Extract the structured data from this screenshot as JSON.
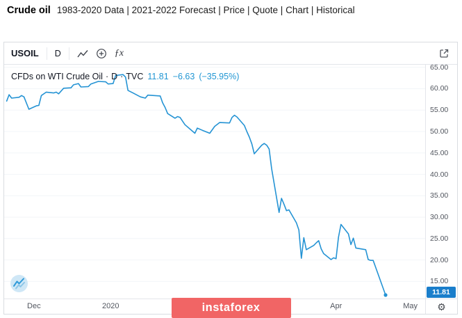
{
  "page_header": {
    "title": "Crude oil",
    "subtitle": "1983-2020 Data | 2021-2022 Forecast | Price | Quote | Chart | Historical"
  },
  "toolbar": {
    "symbol": "USOIL",
    "interval": "D",
    "indicators_label": "ƒx",
    "settings_icon": "⚙"
  },
  "legend": {
    "title": "CFDs on WTI Crude Oil",
    "separator": "·",
    "interval": "D",
    "exchange": "TVC",
    "price": "11.81",
    "change": "−6.63",
    "change_pct": "(−35.95%)"
  },
  "watermark": "instaforex",
  "colors": {
    "line": "#2493d4",
    "last_price_badge": "#1a7ecb",
    "legend_value": "#2196d3",
    "watermark_bg": "#f16565",
    "axis_text": "#51555e",
    "grid": "#f2f5f8"
  },
  "chart_data": {
    "type": "line",
    "title": "CFDs on WTI Crude Oil · D · TVC",
    "symbol": "USOIL",
    "last_price": 11.81,
    "change": -6.63,
    "change_percent": -35.95,
    "y_ticks": [
      65,
      60,
      55,
      50,
      45,
      40,
      35,
      30,
      25,
      20,
      15
    ],
    "y_range": [
      11.0,
      65.6
    ],
    "x_ticks": [
      {
        "label": "Dec",
        "day": 12
      },
      {
        "label": "2020",
        "day": 43
      },
      {
        "label": "Apr",
        "day": 134
      },
      {
        "label": "May",
        "day": 164
      }
    ],
    "x_range_days": [
      0,
      170
    ],
    "points": [
      [
        1,
        57.1
      ],
      [
        2,
        58.6
      ],
      [
        3,
        57.8
      ],
      [
        6,
        58.0
      ],
      [
        7,
        58.4
      ],
      [
        8,
        58.1
      ],
      [
        10,
        55.2
      ],
      [
        13,
        56.0
      ],
      [
        14,
        56.1
      ],
      [
        15,
        58.4
      ],
      [
        17,
        59.2
      ],
      [
        20,
        59.0
      ],
      [
        21,
        59.2
      ],
      [
        22,
        58.8
      ],
      [
        24,
        60.1
      ],
      [
        27,
        60.2
      ],
      [
        28,
        60.9
      ],
      [
        30,
        61.2
      ],
      [
        31,
        60.4
      ],
      [
        34,
        60.5
      ],
      [
        35,
        61.1
      ],
      [
        38,
        61.7
      ],
      [
        41,
        61.6
      ],
      [
        42,
        61.1
      ],
      [
        44,
        61.2
      ],
      [
        45,
        63.1
      ],
      [
        48,
        63.3
      ],
      [
        49,
        62.7
      ],
      [
        50,
        59.6
      ],
      [
        52,
        59.0
      ],
      [
        55,
        58.1
      ],
      [
        57,
        57.8
      ],
      [
        58,
        58.5
      ],
      [
        63,
        58.3
      ],
      [
        64,
        56.7
      ],
      [
        65,
        55.6
      ],
      [
        66,
        54.2
      ],
      [
        69,
        53.1
      ],
      [
        70,
        53.5
      ],
      [
        71,
        53.3
      ],
      [
        73,
        51.6
      ],
      [
        76,
        50.1
      ],
      [
        77,
        49.6
      ],
      [
        78,
        50.8
      ],
      [
        80,
        50.3
      ],
      [
        83,
        49.6
      ],
      [
        85,
        51.2
      ],
      [
        87,
        52.1
      ],
      [
        91,
        52.0
      ],
      [
        92,
        53.3
      ],
      [
        93,
        53.8
      ],
      [
        94,
        53.4
      ],
      [
        97,
        51.4
      ],
      [
        98,
        50.0
      ],
      [
        99,
        48.7
      ],
      [
        100,
        47.1
      ],
      [
        101,
        44.8
      ],
      [
        104,
        46.8
      ],
      [
        105,
        47.2
      ],
      [
        106,
        46.8
      ],
      [
        107,
        45.9
      ],
      [
        108,
        41.3
      ],
      [
        111,
        31.1
      ],
      [
        112,
        34.4
      ],
      [
        113,
        33.0
      ],
      [
        114,
        31.5
      ],
      [
        115,
        31.7
      ],
      [
        118,
        28.7
      ],
      [
        119,
        27.0
      ],
      [
        120,
        20.4
      ],
      [
        121,
        25.2
      ],
      [
        122,
        22.4
      ],
      [
        125,
        23.4
      ],
      [
        126,
        24.0
      ],
      [
        127,
        24.5
      ],
      [
        128,
        22.6
      ],
      [
        129,
        21.5
      ],
      [
        132,
        20.1
      ],
      [
        133,
        20.5
      ],
      [
        134,
        20.3
      ],
      [
        135,
        25.3
      ],
      [
        136,
        28.3
      ],
      [
        139,
        26.1
      ],
      [
        140,
        23.6
      ],
      [
        141,
        25.1
      ],
      [
        142,
        22.8
      ],
      [
        146,
        22.4
      ],
      [
        147,
        20.1
      ],
      [
        148,
        19.9
      ],
      [
        149,
        19.9
      ],
      [
        150,
        18.3
      ],
      [
        154,
        11.81
      ]
    ]
  }
}
